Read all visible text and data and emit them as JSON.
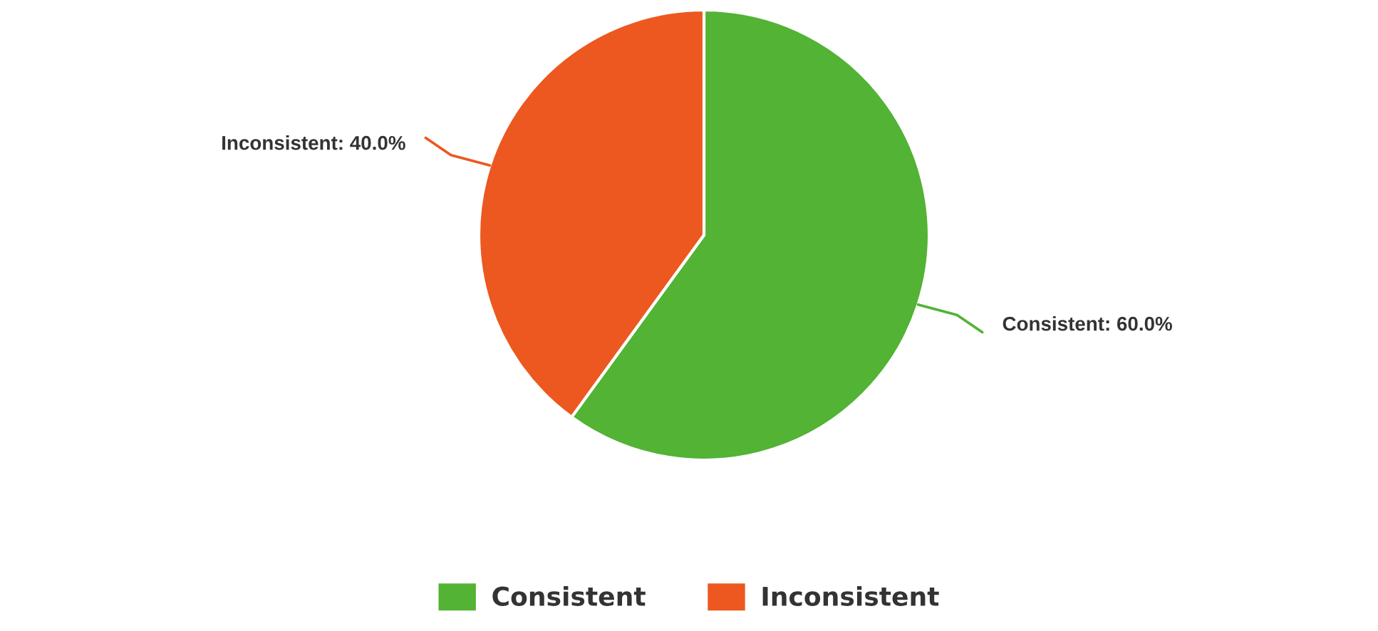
{
  "chart_data": {
    "type": "pie",
    "categories": [
      "Consistent",
      "Inconsistent"
    ],
    "values": [
      60,
      40
    ],
    "colors": [
      "#52b335",
      "#ec581f"
    ],
    "value_labels": [
      "Consistent: 60.0%",
      "Inconsistent: 40.0%"
    ],
    "legend": "bottom"
  }
}
